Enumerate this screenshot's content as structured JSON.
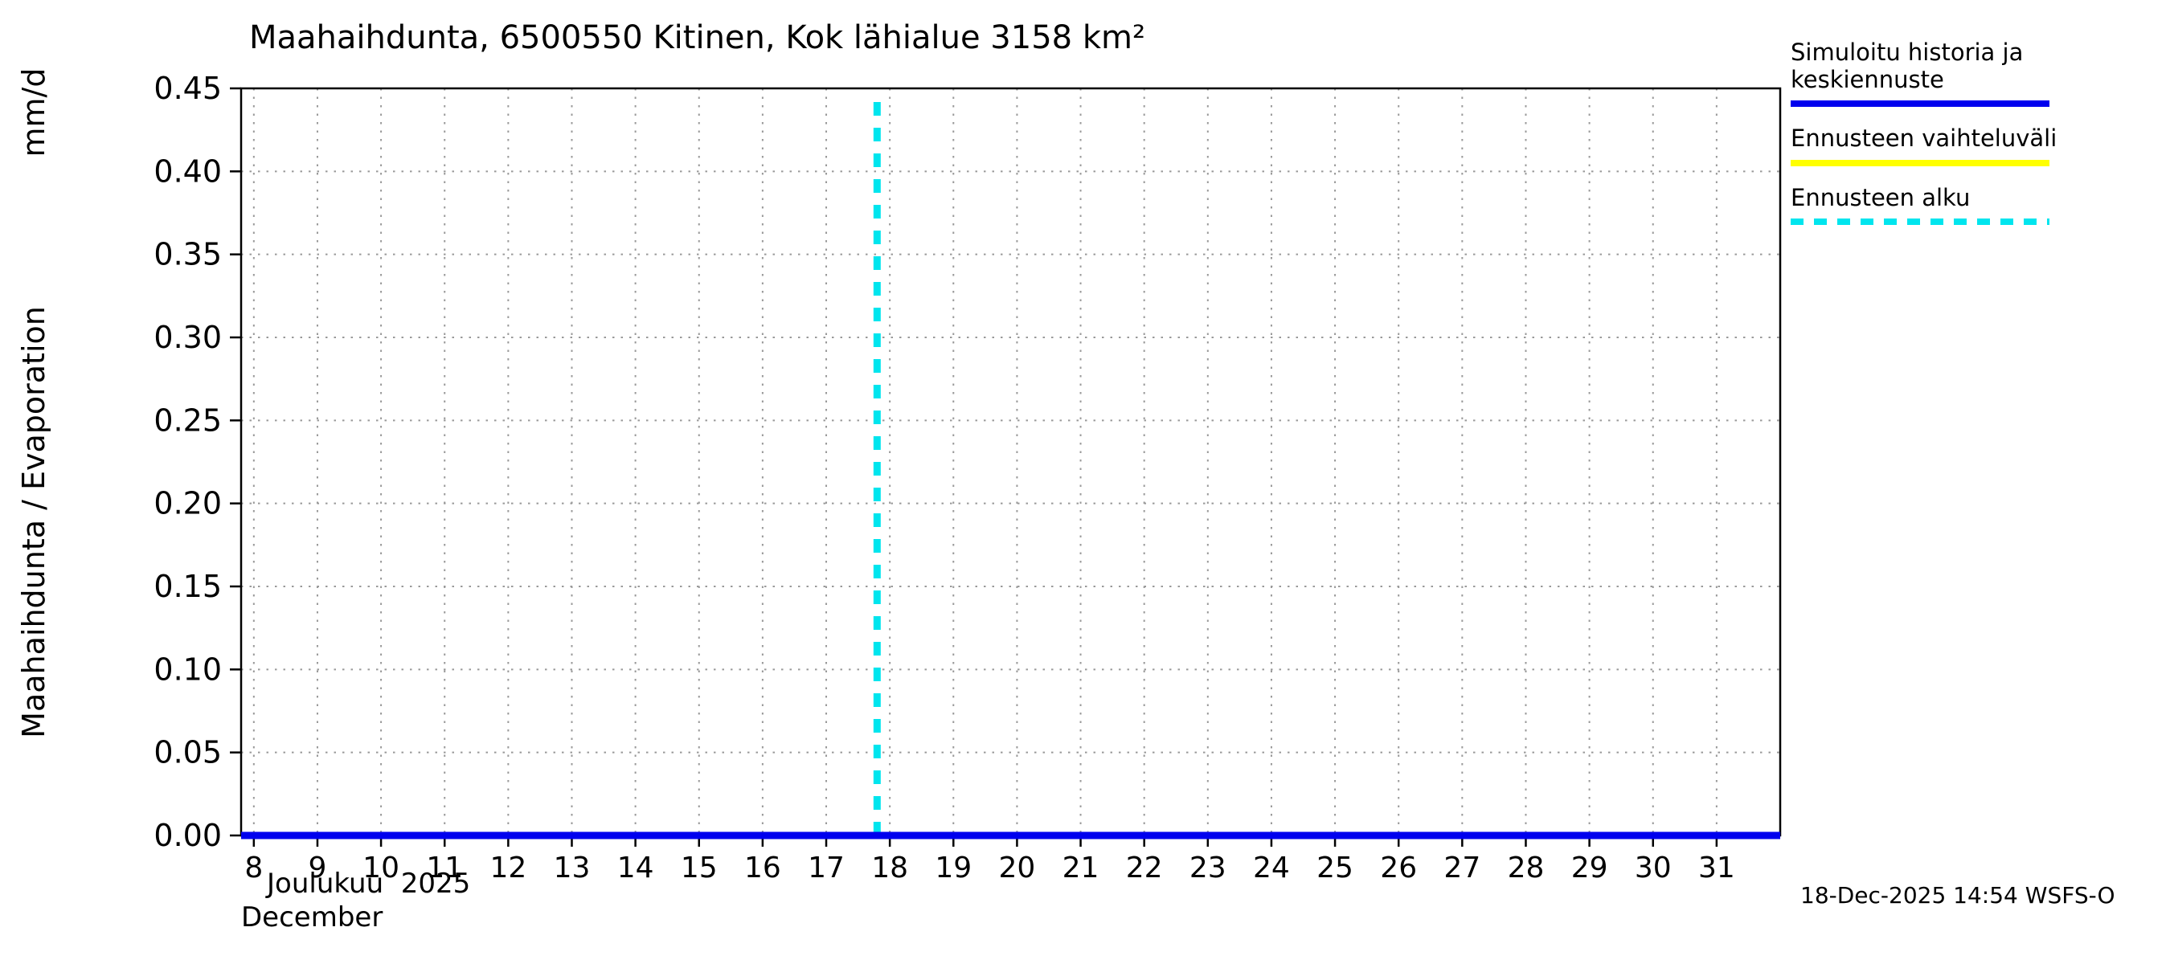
{
  "page": {
    "title": "Maahaihdunta, 6500550 Kitinen, Kok lähialue 3158 km²",
    "month_label_fi": "Joulukuu  2025",
    "month_label_en": "December",
    "timestamp": "18-Dec-2025 14:54 WSFS-O"
  },
  "chart_data": {
    "type": "line",
    "title": "Maahaihdunta, 6500550 Kitinen, Kok lähialue 3158 km²",
    "ylabel": "Maahaihdunta / Evaporation",
    "ylabel_units": "mm/d",
    "xlabel_month_fi": "Joulukuu  2025",
    "xlabel_month_en": "December",
    "xlim": [
      7.8,
      32.0
    ],
    "ylim": [
      0,
      0.45
    ],
    "x_ticks": [
      8,
      9,
      10,
      11,
      12,
      13,
      14,
      15,
      16,
      17,
      18,
      19,
      20,
      21,
      22,
      23,
      24,
      25,
      26,
      27,
      28,
      29,
      30,
      31
    ],
    "y_ticks": [
      0.0,
      0.05,
      0.1,
      0.15,
      0.2,
      0.25,
      0.3,
      0.35,
      0.4,
      0.45
    ],
    "grid": true,
    "grid_color": "#999999",
    "series": [
      {
        "name": "Simuloitu historia ja keskiennuste",
        "color": "#0000ee",
        "style": "solid",
        "x": [
          7.8,
          32.0
        ],
        "y": [
          0.0,
          0.0
        ]
      }
    ],
    "forecast_start": {
      "label": "Ennusteen alku",
      "x": 17.8,
      "y_top": 0.443,
      "color": "#00e5ee",
      "style": "dashed"
    },
    "legend": [
      {
        "label": "Simuloitu historia ja keskiennuste",
        "color": "#0000ee",
        "style": "solid"
      },
      {
        "label": "Ennusteen vaihteluväli",
        "color": "#ffff00",
        "style": "solid"
      },
      {
        "label": "Ennusteen alku",
        "color": "#00e5ee",
        "style": "dashed"
      }
    ]
  }
}
